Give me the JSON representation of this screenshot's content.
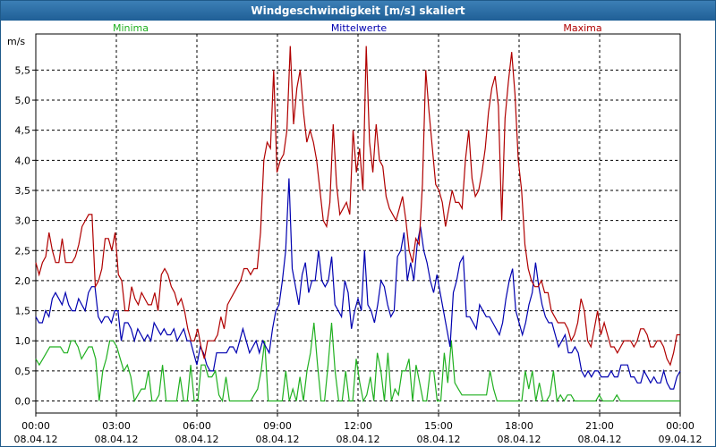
{
  "chart_data": {
    "type": "line",
    "title": "Windgeschwindigkeit [m/s] skaliert",
    "ylabel": "m/s",
    "ylim": [
      -0.2,
      6.1
    ],
    "yticks": [
      "0,0",
      "0,5",
      "1,0",
      "1,5",
      "2,0",
      "2,5",
      "3,0",
      "3,5",
      "4,0",
      "4,5",
      "5,0",
      "5,5"
    ],
    "xrange_hours": [
      0,
      24
    ],
    "xticks": [
      {
        "time": "00:00",
        "date": "08.04.12"
      },
      {
        "time": "03:00",
        "date": "08.04.12"
      },
      {
        "time": "06:00",
        "date": "08.04.12"
      },
      {
        "time": "09:00",
        "date": "08.04.12"
      },
      {
        "time": "12:00",
        "date": "08.04.12"
      },
      {
        "time": "15:00",
        "date": "08.04.12"
      },
      {
        "time": "18:00",
        "date": "08.04.12"
      },
      {
        "time": "21:00",
        "date": "08.04.12"
      },
      {
        "time": "00:00",
        "date": "09.04.12"
      }
    ],
    "grid": true,
    "legend_placement": "top",
    "series": [
      {
        "name": "Minima",
        "color": "#20b020",
        "values": [
          0.7,
          0.6,
          0.7,
          0.8,
          0.9,
          0.9,
          0.9,
          0.9,
          0.8,
          0.8,
          1.0,
          1.0,
          0.9,
          0.7,
          0.8,
          0.9,
          0.9,
          0.7,
          0.0,
          0.5,
          0.7,
          1.0,
          1.0,
          0.9,
          0.7,
          0.5,
          0.6,
          0.4,
          0.0,
          0.1,
          0.2,
          0.2,
          0.5,
          0.0,
          0.0,
          0.1,
          0.6,
          0.0,
          0.0,
          0.0,
          0.0,
          0.4,
          0.0,
          0.0,
          0.6,
          0.0,
          0.0,
          0.6,
          0.6,
          0.4,
          0.4,
          0.5,
          0.1,
          0.0,
          0.4,
          0.0,
          0.0,
          0.0,
          0.0,
          0.0,
          0.0,
          0.0,
          0.1,
          0.2,
          0.5,
          1.0,
          0.0,
          0.0,
          0.0,
          0.0,
          0.0,
          0.5,
          0.0,
          0.2,
          0.0,
          0.4,
          0.0,
          0.5,
          0.8,
          1.3,
          0.6,
          0.0,
          0.0,
          0.6,
          1.3,
          0.5,
          0.0,
          0.0,
          0.5,
          0.0,
          0.0,
          0.7,
          0.3,
          0.0,
          0.1,
          0.4,
          0.0,
          0.8,
          0.5,
          0.0,
          0.8,
          0.0,
          0.2,
          0.1,
          0.5,
          0.5,
          0.7,
          0.0,
          0.6,
          0.3,
          0.0,
          0.0,
          0.5,
          0.5,
          0.0,
          0.0,
          0.8,
          0.3,
          1.0,
          0.3,
          0.2,
          0.1,
          0.1,
          0.1,
          0.1,
          0.1,
          0.1,
          0.1,
          0.1,
          0.5,
          0.2,
          0.0,
          0.0,
          0.0,
          0.0,
          0.0,
          0.0,
          0.0,
          0.0,
          0.5,
          0.2,
          0.5,
          0.0,
          0.3,
          0.0,
          0.0,
          0.1,
          0.5,
          0.0,
          0.1,
          0.0,
          0.1,
          0.1,
          0.0,
          0.0,
          0.0,
          0.0,
          0.0,
          0.0,
          0.0,
          0.1,
          0.0,
          0.0,
          0.0,
          0.0,
          0.1,
          0.0,
          0.0,
          0.0,
          0.0,
          0.0,
          0.0,
          0.0,
          0.0,
          0.0,
          0.0,
          0.0,
          0.0,
          0.0,
          0.0,
          0.0,
          0.0,
          0.0,
          0.0
        ]
      },
      {
        "name": "Mittelwerte",
        "color": "#0000b0",
        "values": [
          1.4,
          1.3,
          1.3,
          1.5,
          1.4,
          1.7,
          1.8,
          1.7,
          1.6,
          1.8,
          1.6,
          1.5,
          1.5,
          1.7,
          1.6,
          1.5,
          1.8,
          1.9,
          1.9,
          1.4,
          1.3,
          1.4,
          1.4,
          1.3,
          1.5,
          1.5,
          1.0,
          1.3,
          1.3,
          1.2,
          1.0,
          1.2,
          1.1,
          1.0,
          1.1,
          1.0,
          1.3,
          1.2,
          1.1,
          1.2,
          1.1,
          1.1,
          1.2,
          1.0,
          1.1,
          1.2,
          1.0,
          1.0,
          0.8,
          0.6,
          0.9,
          0.8,
          0.6,
          0.5,
          0.5,
          0.8,
          0.8,
          0.8,
          0.8,
          0.9,
          0.9,
          0.8,
          1.0,
          1.2,
          1.0,
          0.8,
          0.9,
          1.0,
          0.8,
          1.0,
          0.9,
          0.8,
          1.2,
          1.5,
          1.6,
          2.0,
          2.5,
          3.7,
          2.2,
          1.9,
          1.6,
          2.1,
          2.3,
          1.8,
          2.0,
          2.0,
          2.5,
          2.0,
          1.9,
          2.0,
          2.4,
          1.6,
          1.5,
          1.4,
          2.0,
          1.8,
          1.2,
          1.5,
          1.7,
          1.5,
          2.5,
          1.6,
          1.5,
          1.3,
          1.6,
          2.0,
          1.9,
          1.6,
          1.4,
          1.5,
          2.4,
          2.5,
          2.8,
          2.0,
          2.3,
          2.0,
          2.6,
          2.9,
          2.5,
          2.3,
          2.0,
          1.8,
          2.1,
          1.8,
          1.5,
          1.2,
          0.9,
          1.8,
          2.0,
          2.3,
          2.4,
          1.4,
          1.4,
          1.3,
          1.2,
          1.6,
          1.5,
          1.4,
          1.4,
          1.3,
          1.2,
          1.1,
          1.3,
          1.7,
          2.0,
          2.2,
          1.5,
          1.3,
          1.1,
          1.3,
          1.6,
          1.8,
          2.3,
          1.9,
          1.6,
          1.4,
          1.3,
          1.3,
          1.1,
          0.9,
          1.0,
          1.1,
          0.8,
          0.8,
          0.9,
          0.8,
          0.5,
          0.4,
          0.5,
          0.4,
          0.5,
          0.5,
          0.4,
          0.4,
          0.4,
          0.5,
          0.4,
          0.4,
          0.6,
          0.6,
          0.6,
          0.4,
          0.4,
          0.3,
          0.3,
          0.5,
          0.4,
          0.3,
          0.4,
          0.3,
          0.3,
          0.5,
          0.3,
          0.2,
          0.2,
          0.4,
          0.5
        ]
      },
      {
        "name": "Maxima",
        "color": "#b00000",
        "values": [
          2.3,
          2.1,
          2.3,
          2.4,
          2.8,
          2.5,
          2.3,
          2.3,
          2.7,
          2.3,
          2.3,
          2.3,
          2.4,
          2.6,
          2.9,
          3.0,
          3.1,
          3.1,
          1.9,
          2.0,
          2.2,
          2.7,
          2.7,
          2.5,
          2.8,
          2.1,
          2.0,
          1.5,
          1.5,
          1.9,
          1.7,
          1.6,
          1.8,
          1.7,
          1.6,
          1.6,
          1.8,
          1.5,
          2.1,
          2.2,
          2.1,
          1.9,
          1.8,
          1.6,
          1.7,
          1.5,
          1.2,
          1.0,
          1.0,
          1.2,
          0.9,
          0.7,
          1.0,
          1.0,
          1.0,
          1.1,
          1.4,
          1.2,
          1.6,
          1.7,
          1.8,
          1.9,
          2.0,
          2.2,
          2.2,
          2.1,
          2.2,
          2.2,
          2.8,
          4.0,
          4.3,
          4.2,
          5.5,
          3.8,
          4.0,
          4.1,
          4.5,
          5.9,
          4.6,
          5.2,
          5.5,
          4.8,
          4.3,
          4.5,
          4.3,
          4.0,
          3.5,
          3.0,
          2.9,
          3.3,
          4.6,
          3.6,
          3.1,
          3.2,
          3.3,
          3.1,
          4.5,
          3.8,
          4.2,
          3.5,
          5.9,
          4.3,
          3.8,
          4.6,
          4.0,
          3.9,
          3.4,
          3.2,
          3.1,
          3.0,
          3.2,
          3.4,
          3.0,
          2.5,
          2.3,
          2.7,
          2.6,
          3.6,
          5.5,
          4.8,
          4.2,
          3.6,
          3.5,
          3.3,
          2.9,
          3.2,
          3.5,
          3.3,
          3.3,
          3.2,
          4.0,
          4.5,
          3.7,
          3.4,
          3.5,
          3.8,
          4.2,
          4.8,
          5.2,
          5.4,
          4.9,
          3.0,
          4.7,
          5.3,
          5.8,
          5.1,
          4.0,
          3.5,
          2.6,
          2.2,
          2.0,
          1.9,
          1.9,
          2.0,
          1.8,
          1.8,
          1.5,
          1.4,
          1.3,
          1.3,
          1.3,
          1.2,
          1.0,
          1.1,
          1.3,
          1.7,
          1.5,
          1.0,
          0.9,
          1.2,
          1.5,
          1.1,
          1.3,
          1.1,
          0.9,
          0.9,
          0.8,
          0.9,
          1.0,
          1.0,
          1.0,
          0.9,
          1.0,
          1.2,
          1.2,
          1.1,
          0.9,
          0.9,
          1.0,
          1.0,
          0.9,
          0.7,
          0.6,
          0.8,
          1.1,
          1.1
        ]
      }
    ]
  }
}
